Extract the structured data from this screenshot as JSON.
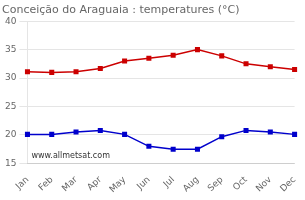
{
  "chart_data": {
    "type": "line",
    "title": "Conceição do Araguaia : temperatures (°C)",
    "categories": [
      "Jan",
      "Feb",
      "Mar",
      "Apr",
      "May",
      "Jun",
      "Jul",
      "Aug",
      "Sep",
      "Oct",
      "Nov",
      "Dec"
    ],
    "series": [
      {
        "color": "#cc0000",
        "marker": "square",
        "values": [
          31.1,
          31.0,
          31.1,
          31.7,
          33.0,
          33.5,
          34.0,
          35.0,
          33.9,
          32.5,
          32.0,
          31.5
        ]
      },
      {
        "color": "#0000cc",
        "marker": "square",
        "values": [
          20.1,
          20.1,
          20.5,
          20.8,
          20.1,
          18.0,
          17.5,
          17.5,
          19.7,
          20.8,
          20.5,
          20.1
        ]
      }
    ],
    "ylim": [
      15,
      40
    ],
    "yticks": [
      15,
      20,
      25,
      30,
      35,
      40
    ],
    "grid": "y",
    "annotations": [
      "www.allmetsat.com"
    ]
  }
}
